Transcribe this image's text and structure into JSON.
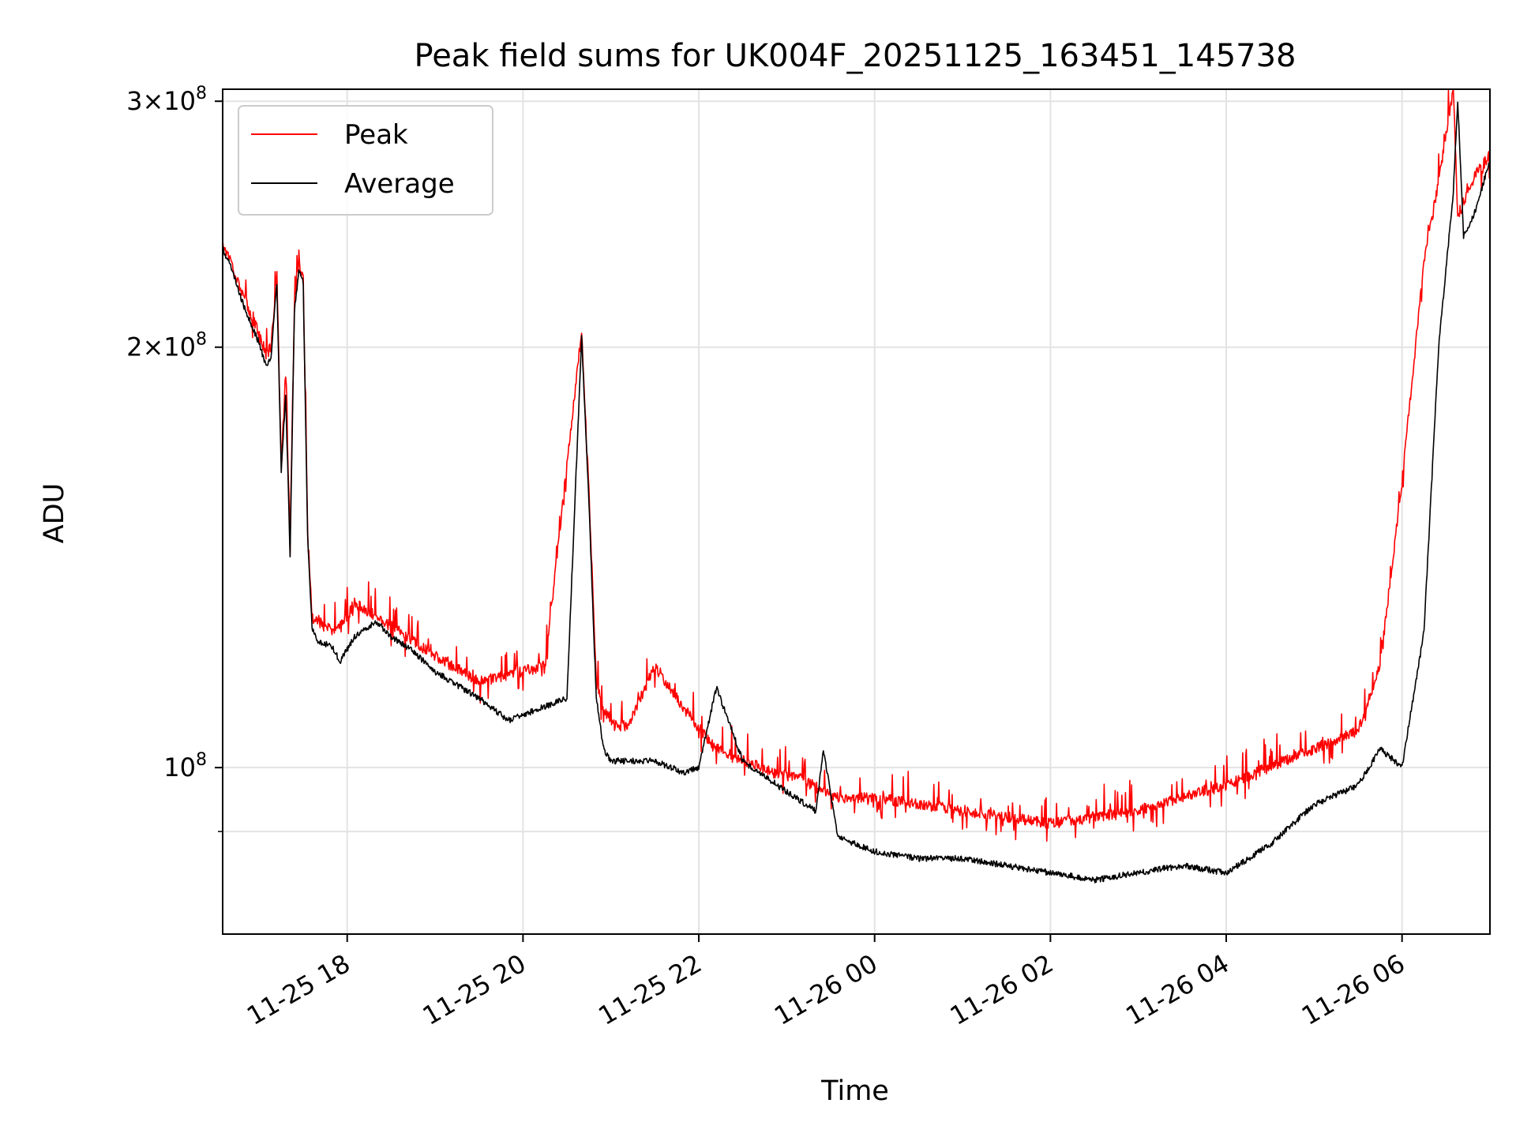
{
  "chart_data": {
    "type": "line",
    "title": "Peak field sums for UK004F_20251125_163451_145738",
    "xlabel": "Time",
    "ylabel": "ADU",
    "y_scale": "log",
    "grid": true,
    "legend_placement": "upper left",
    "xlim": [
      "2025-11-25 16:35",
      "2025-11-26 07:00"
    ],
    "ylim": [
      76000000,
      306000000
    ],
    "x_ticks": [
      {
        "t": "2025-11-25 18:00",
        "label": "11-25 18"
      },
      {
        "t": "2025-11-25 20:00",
        "label": "11-25 20"
      },
      {
        "t": "2025-11-25 22:00",
        "label": "11-25 22"
      },
      {
        "t": "2025-11-26 00:00",
        "label": "11-26 00"
      },
      {
        "t": "2025-11-26 02:00",
        "label": "11-26 02"
      },
      {
        "t": "2025-11-26 04:00",
        "label": "11-26 04"
      },
      {
        "t": "2025-11-26 06:00",
        "label": "11-26 06"
      }
    ],
    "y_ticks_major": [
      {
        "value": 100000000,
        "base": "10",
        "exp": "8",
        "mult": ""
      },
      {
        "value": 200000000,
        "base": "10",
        "exp": "8",
        "mult": "2×"
      },
      {
        "value": 300000000,
        "base": "10",
        "exp": "8",
        "mult": "3×"
      }
    ],
    "y_ticks_minor": [
      90000000
    ],
    "series": [
      {
        "name": "Peak",
        "color": "#ff0000",
        "x": [
          "2025-11-25 16:35",
          "2025-11-25 16:40",
          "2025-11-25 16:50",
          "2025-11-25 17:00",
          "2025-11-25 17:05",
          "2025-11-25 17:08",
          "2025-11-25 17:12",
          "2025-11-25 17:15",
          "2025-11-25 17:18",
          "2025-11-25 17:21",
          "2025-11-25 17:24",
          "2025-11-25 17:27",
          "2025-11-25 17:30",
          "2025-11-25 17:33",
          "2025-11-25 17:36",
          "2025-11-25 17:38",
          "2025-11-25 17:41",
          "2025-11-25 17:44",
          "2025-11-25 17:50",
          "2025-11-25 18:00",
          "2025-11-25 18:05",
          "2025-11-25 18:20",
          "2025-11-25 18:30",
          "2025-11-25 18:45",
          "2025-11-25 19:00",
          "2025-11-25 19:30",
          "2025-11-25 20:00",
          "2025-11-25 20:15",
          "2025-11-25 20:40",
          "2025-11-25 20:45",
          "2025-11-25 20:50",
          "2025-11-25 20:55",
          "2025-11-25 21:00",
          "2025-11-25 21:05",
          "2025-11-25 21:12",
          "2025-11-25 21:30",
          "2025-11-25 21:50",
          "2025-11-25 22:05",
          "2025-11-25 22:12",
          "2025-11-25 22:30",
          "2025-11-25 22:50",
          "2025-11-25 23:10",
          "2025-11-25 23:25",
          "2025-11-25 23:35",
          "2025-11-26 00:00",
          "2025-11-26 00:30",
          "2025-11-26 01:00",
          "2025-11-26 01:30",
          "2025-11-26 02:00",
          "2025-11-26 02:30",
          "2025-11-26 03:00",
          "2025-11-26 03:30",
          "2025-11-26 04:00",
          "2025-11-26 04:30",
          "2025-11-26 05:00",
          "2025-11-26 05:30",
          "2025-11-26 05:45",
          "2025-11-26 06:00",
          "2025-11-26 06:15",
          "2025-11-26 06:25",
          "2025-11-26 06:35",
          "2025-11-26 06:38",
          "2025-11-26 06:42",
          "2025-11-26 06:50",
          "2025-11-26 07:00"
        ],
        "y": [
          237000000,
          231000000,
          216000000,
          204000000,
          197000000,
          200000000,
          225000000,
          166000000,
          188000000,
          145000000,
          215000000,
          230000000,
          224000000,
          148000000,
          128000000,
          127000000,
          127000000,
          126000000,
          125000000,
          128000000,
          131000000,
          128000000,
          126000000,
          123000000,
          120000000,
          115000000,
          117000000,
          118000000,
          205000000,
          158000000,
          115000000,
          110000000,
          108000000,
          107000000,
          107000000,
          118000000,
          110000000,
          105000000,
          103000000,
          101000000,
          99000000,
          98000000,
          96000000,
          95000000,
          95000000,
          94000000,
          93000000,
          92000000,
          91000000,
          92000000,
          93000000,
          95000000,
          97000000,
          100000000,
          103000000,
          106000000,
          118000000,
          160000000,
          230000000,
          262000000,
          305000000,
          248000000,
          254000000,
          265000000,
          274000000
        ]
      },
      {
        "name": "Average",
        "color": "#000000",
        "x": [
          "2025-11-25 16:35",
          "2025-11-25 16:40",
          "2025-11-25 16:50",
          "2025-11-25 17:00",
          "2025-11-25 17:05",
          "2025-11-25 17:08",
          "2025-11-25 17:12",
          "2025-11-25 17:15",
          "2025-11-25 17:18",
          "2025-11-25 17:21",
          "2025-11-25 17:24",
          "2025-11-25 17:27",
          "2025-11-25 17:30",
          "2025-11-25 17:33",
          "2025-11-25 17:36",
          "2025-11-25 17:40",
          "2025-11-25 17:50",
          "2025-11-25 17:55",
          "2025-11-25 18:05",
          "2025-11-25 18:20",
          "2025-11-25 18:30",
          "2025-11-25 18:45",
          "2025-11-25 19:00",
          "2025-11-25 19:30",
          "2025-11-25 19:50",
          "2025-11-25 20:10",
          "2025-11-25 20:30",
          "2025-11-25 20:40",
          "2025-11-25 20:45",
          "2025-11-25 20:50",
          "2025-11-25 20:55",
          "2025-11-25 21:00",
          "2025-11-25 21:30",
          "2025-11-25 21:50",
          "2025-11-25 22:00",
          "2025-11-25 22:12",
          "2025-11-25 22:30",
          "2025-11-25 23:00",
          "2025-11-25 23:20",
          "2025-11-25 23:25",
          "2025-11-25 23:35",
          "2025-11-26 00:00",
          "2025-11-26 00:30",
          "2025-11-26 01:00",
          "2025-11-26 01:30",
          "2025-11-26 02:00",
          "2025-11-26 02:30",
          "2025-11-26 03:00",
          "2025-11-26 03:30",
          "2025-11-26 04:00",
          "2025-11-26 04:30",
          "2025-11-26 05:00",
          "2025-11-26 05:30",
          "2025-11-26 05:45",
          "2025-11-26 06:00",
          "2025-11-26 06:15",
          "2025-11-26 06:25",
          "2025-11-26 06:35",
          "2025-11-26 06:38",
          "2025-11-26 06:42",
          "2025-11-26 06:50",
          "2025-11-26 07:00"
        ],
        "y": [
          235000000,
          229000000,
          213000000,
          201000000,
          193000000,
          197000000,
          222000000,
          163000000,
          185000000,
          142000000,
          212000000,
          227000000,
          222000000,
          146000000,
          126000000,
          123000000,
          122000000,
          119000000,
          124000000,
          127000000,
          124000000,
          121000000,
          117000000,
          112000000,
          108000000,
          110000000,
          112000000,
          203000000,
          155000000,
          112000000,
          103000000,
          101000000,
          101000000,
          99000000,
          100000000,
          114000000,
          101000000,
          96000000,
          93000000,
          103000000,
          89000000,
          87000000,
          86000000,
          86000000,
          85000000,
          84000000,
          83000000,
          84000000,
          85000000,
          84000000,
          88000000,
          94000000,
          97000000,
          103000000,
          100000000,
          125000000,
          200000000,
          258000000,
          300000000,
          240000000,
          250000000,
          272000000
        ]
      }
    ]
  }
}
